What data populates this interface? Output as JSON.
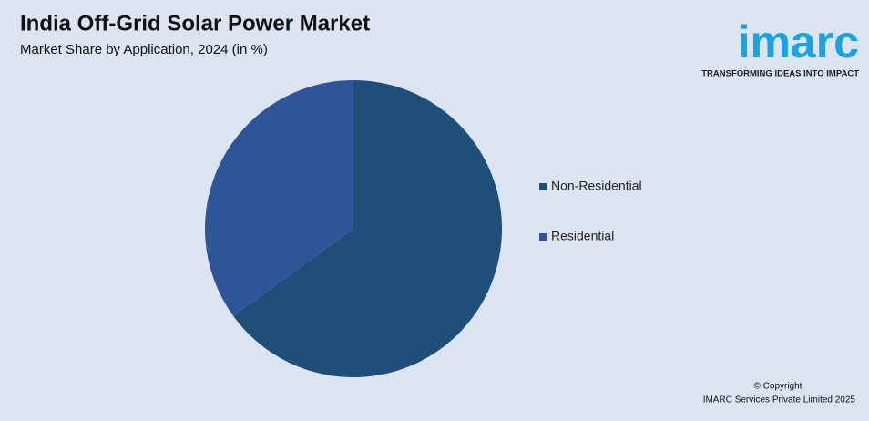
{
  "chart_data": {
    "type": "pie",
    "title": "India Off-Grid Solar Power Market",
    "subtitle": "Market Share by Application, 2024 (in %)",
    "categories": [
      "Non-Residential",
      "Residential"
    ],
    "values": [
      65,
      35
    ],
    "colors": [
      "#1f4e79",
      "#2e5597"
    ],
    "legend": "right"
  },
  "logo": {
    "name": "imarc",
    "tagline": "TRANSFORMING IDEAS INTO IMPACT"
  },
  "footer": {
    "copyright": "© Copyright",
    "company": "IMARC Services Private Limited 2025"
  }
}
